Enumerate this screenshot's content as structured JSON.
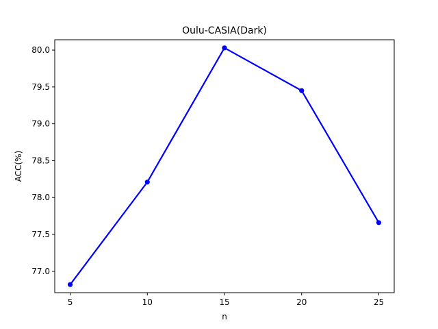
{
  "chart_data": {
    "type": "line",
    "title": "Oulu-CASIA(Dark)",
    "xlabel": "n",
    "ylabel": "ACC(%)",
    "x": [
      5,
      10,
      15,
      20,
      25
    ],
    "series": [
      {
        "values": [
          76.82,
          78.21,
          80.03,
          79.45,
          77.66
        ],
        "color": "#0000ff",
        "marker": "circle"
      }
    ],
    "xticks": [
      5,
      10,
      15,
      20,
      25
    ],
    "xtick_labels": [
      "5",
      "10",
      "15",
      "20",
      "25"
    ],
    "yticks": [
      77.0,
      77.5,
      78.0,
      78.5,
      79.0,
      79.5,
      80.0
    ],
    "ytick_labels": [
      "77.0",
      "77.5",
      "78.0",
      "78.5",
      "79.0",
      "79.5",
      "80.0"
    ],
    "xlim": [
      4.0,
      26.0
    ],
    "ylim": [
      76.71,
      80.14
    ],
    "grid": false,
    "legend": "none"
  }
}
